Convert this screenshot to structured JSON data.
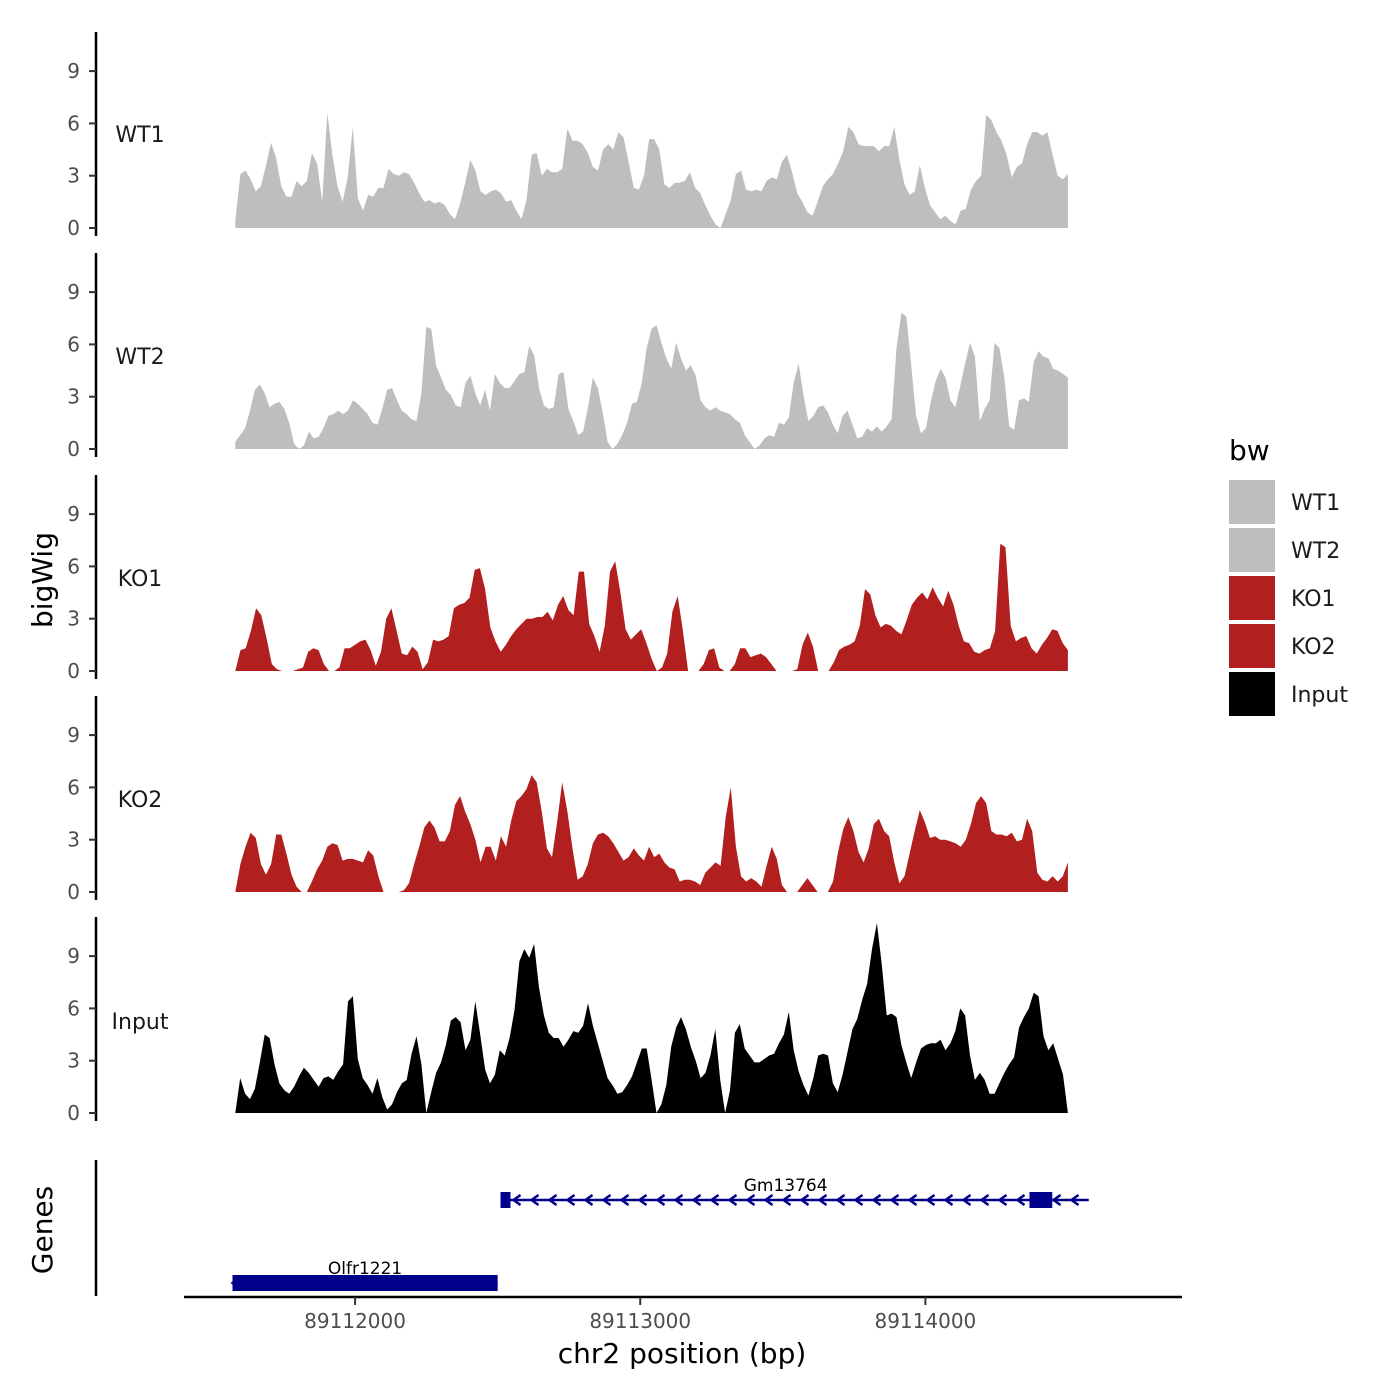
{
  "chart_data": {
    "type": "area",
    "chromosome": "chr2",
    "xlabel": "chr2 position (bp)",
    "ylabel": "bigWig",
    "genes_label": "Genes",
    "xlim": [
      89111400,
      89114900
    ],
    "ylim": [
      0,
      11.3
    ],
    "x_ticks": [
      89112000,
      89113000,
      89114000
    ],
    "x_tick_labels": [
      "89112000",
      "89113000",
      "89114000"
    ],
    "y_ticks": [
      0,
      3,
      6,
      9
    ],
    "y_tick_labels": [
      "0",
      "3",
      "6",
      "9"
    ],
    "legend_title": "bw",
    "legend_position": "right",
    "colors": {
      "WT1": "#bebebe",
      "WT2": "#bebebe",
      "KO1": "#b21f1f",
      "KO2": "#b21f1f",
      "Input": "#000000",
      "gene": "#00008b",
      "axis": "#000000"
    },
    "x_start": 89111580,
    "x_end": 89114500,
    "series": [
      {
        "name": "WT1",
        "label": "WT1",
        "values": [
          0.4,
          3.1,
          3.3,
          2.8,
          2.1,
          2.4,
          3.6,
          4.9,
          4.0,
          2.4,
          1.8,
          1.8,
          2.7,
          2.4,
          2.7,
          4.3,
          3.7,
          1.5,
          6.6,
          4.2,
          2.4,
          1.5,
          2.9,
          5.8,
          1.7,
          1.0,
          1.9,
          1.8,
          2.3,
          2.3,
          3.4,
          3.1,
          3.0,
          3.2,
          3.1,
          2.6,
          2.0,
          1.5,
          1.6,
          1.4,
          1.5,
          1.3,
          0.8,
          0.5,
          1.4,
          2.6,
          3.9,
          3.3,
          2.1,
          1.9,
          2.1,
          2.2,
          2.0,
          1.5,
          1.6,
          1.0,
          0.5,
          1.6,
          4.2,
          4.3,
          3.0,
          3.4,
          3.2,
          3.2,
          3.4,
          5.7,
          5.0,
          5.0,
          4.8,
          4.3,
          3.5,
          3.3,
          4.5,
          4.8,
          4.5,
          5.5,
          5.2,
          3.8,
          2.3,
          2.2,
          3.0,
          5.1,
          5.1,
          4.5,
          2.5,
          2.3,
          2.6,
          2.6,
          2.7,
          3.2,
          2.3,
          2.0,
          1.3,
          0.7,
          0.2,
          0.0,
          0.8,
          1.6,
          3.1,
          3.3,
          2.2,
          2.1,
          2.2,
          2.1,
          2.7,
          2.9,
          2.8,
          3.8,
          4.2,
          3.2,
          2.0,
          1.5,
          0.9,
          0.7,
          1.5,
          2.4,
          2.8,
          3.1,
          3.7,
          4.4,
          5.8,
          5.5,
          4.8,
          4.7,
          4.7,
          4.7,
          4.4,
          4.7,
          4.7,
          5.8,
          3.9,
          2.5,
          1.9,
          2.1,
          3.6,
          2.3,
          1.3,
          0.9,
          0.5,
          0.7,
          0.4,
          0.2,
          1.0,
          1.1,
          2.2,
          2.7,
          3.0,
          6.5,
          6.2,
          5.5,
          5.0,
          4.2,
          2.9,
          3.5,
          3.7,
          4.8,
          5.5,
          5.5,
          5.3,
          5.5,
          4.2,
          3.0,
          2.8,
          3.1
        ]
      },
      {
        "name": "WT2",
        "label": "WT2",
        "values": [
          0.4,
          0.8,
          1.2,
          2.2,
          3.4,
          3.7,
          3.2,
          2.4,
          2.6,
          2.7,
          2.3,
          1.5,
          0.3,
          0.0,
          0.2,
          1.0,
          0.6,
          0.7,
          1.2,
          1.9,
          2.0,
          2.2,
          2.0,
          2.2,
          2.8,
          2.6,
          2.3,
          2.0,
          1.5,
          1.4,
          2.3,
          3.4,
          3.5,
          2.8,
          2.2,
          2.0,
          1.7,
          1.6,
          3.2,
          7.0,
          6.9,
          4.8,
          4.1,
          3.4,
          3.1,
          2.5,
          2.4,
          3.8,
          4.2,
          3.2,
          2.5,
          3.4,
          2.2,
          4.3,
          3.8,
          3.5,
          3.5,
          3.9,
          4.3,
          4.4,
          5.9,
          5.4,
          3.5,
          2.5,
          2.3,
          2.4,
          4.3,
          4.4,
          2.3,
          1.6,
          0.8,
          1.0,
          2.4,
          4.1,
          3.5,
          2.1,
          0.4,
          0.0,
          0.3,
          0.8,
          1.5,
          2.6,
          2.7,
          3.8,
          5.8,
          6.9,
          7.1,
          6.1,
          5.2,
          4.6,
          6.1,
          5.2,
          4.5,
          4.8,
          4.2,
          2.8,
          2.4,
          2.2,
          2.4,
          2.2,
          2.1,
          2.0,
          1.7,
          1.5,
          0.8,
          0.4,
          0.0,
          0.2,
          0.6,
          0.8,
          0.7,
          1.5,
          1.4,
          1.8,
          3.8,
          4.9,
          3.1,
          1.6,
          1.9,
          2.4,
          2.5,
          2.1,
          1.4,
          0.9,
          1.9,
          2.2,
          1.4,
          0.6,
          0.7,
          1.2,
          1.0,
          1.3,
          1.0,
          1.3,
          1.7,
          5.8,
          7.8,
          7.6,
          4.8,
          1.9,
          0.9,
          1.2,
          2.7,
          3.9,
          4.6,
          4.1,
          2.8,
          2.4,
          3.6,
          4.9,
          6.1,
          5.3,
          1.6,
          2.3,
          2.8,
          6.1,
          5.8,
          4.1,
          1.3,
          1.1,
          2.8,
          2.9,
          2.7,
          5.0,
          5.6,
          5.3,
          5.2,
          4.6,
          4.5,
          4.3,
          4.1
        ]
      },
      {
        "name": "KO1",
        "label": "KO1",
        "values": [
          0.0,
          1.2,
          1.3,
          2.3,
          3.6,
          3.2,
          1.9,
          0.4,
          0.1,
          0.0,
          0.0,
          0.0,
          0.1,
          0.2,
          1.1,
          1.3,
          1.2,
          0.4,
          0.0,
          0.0,
          0.2,
          1.3,
          1.3,
          1.5,
          1.7,
          1.8,
          1.2,
          0.3,
          1.1,
          3.0,
          3.6,
          2.3,
          1.0,
          0.9,
          1.4,
          1.1,
          0.1,
          0.5,
          1.8,
          1.7,
          1.8,
          2.0,
          3.6,
          3.8,
          3.9,
          4.2,
          5.8,
          5.9,
          4.7,
          2.5,
          1.7,
          1.1,
          1.5,
          2.0,
          2.4,
          2.7,
          3.0,
          3.0,
          3.1,
          3.1,
          3.4,
          2.9,
          3.8,
          4.3,
          3.5,
          3.2,
          5.7,
          5.7,
          2.7,
          2.0,
          1.1,
          2.6,
          5.7,
          6.3,
          4.5,
          2.4,
          1.8,
          2.1,
          2.4,
          1.6,
          0.7,
          0.0,
          0.2,
          1.0,
          3.4,
          4.3,
          2.3,
          0.0,
          0.0,
          0.0,
          0.4,
          1.2,
          1.3,
          0.2,
          0.0,
          0.0,
          0.4,
          1.3,
          1.3,
          0.8,
          0.9,
          1.0,
          0.8,
          0.4,
          0.0,
          0.0,
          0.0,
          0.0,
          0.1,
          1.5,
          2.2,
          1.4,
          0.0,
          0.0,
          0.0,
          0.5,
          1.2,
          1.4,
          1.5,
          1.7,
          2.6,
          4.7,
          4.4,
          3.2,
          2.5,
          2.7,
          2.6,
          2.3,
          2.1,
          2.9,
          3.8,
          4.2,
          4.5,
          4.1,
          4.8,
          4.2,
          3.7,
          4.6,
          3.8,
          2.6,
          1.7,
          1.6,
          1.1,
          1.0,
          1.2,
          1.3,
          2.3,
          7.3,
          7.1,
          2.6,
          1.7,
          1.9,
          2.0,
          1.3,
          1.0,
          1.5,
          1.9,
          2.4,
          2.3,
          1.6,
          1.2
        ]
      },
      {
        "name": "KO2",
        "label": "KO2",
        "values": [
          0.0,
          1.6,
          2.6,
          3.4,
          3.1,
          1.6,
          1.0,
          1.6,
          3.3,
          3.3,
          2.2,
          1.0,
          0.3,
          0.0,
          0.0,
          0.6,
          1.3,
          1.8,
          2.6,
          2.8,
          2.7,
          1.8,
          1.9,
          1.9,
          1.8,
          1.7,
          2.4,
          2.1,
          0.9,
          0.0,
          0.0,
          0.0,
          0.0,
          0.1,
          0.5,
          1.6,
          2.6,
          3.7,
          4.1,
          3.7,
          2.9,
          2.9,
          3.5,
          5.0,
          5.5,
          4.6,
          3.9,
          3.0,
          1.7,
          2.6,
          2.6,
          1.8,
          3.2,
          2.6,
          4.1,
          5.2,
          5.5,
          5.9,
          6.7,
          6.3,
          4.6,
          2.5,
          2.0,
          4.0,
          6.3,
          4.6,
          2.5,
          0.7,
          0.9,
          1.6,
          2.8,
          3.3,
          3.4,
          3.2,
          2.8,
          2.3,
          1.8,
          2.0,
          2.5,
          2.1,
          1.8,
          2.6,
          2.0,
          2.2,
          1.7,
          1.4,
          1.3,
          0.6,
          0.7,
          0.7,
          0.6,
          0.4,
          1.1,
          1.4,
          1.7,
          1.5,
          4.3,
          6.0,
          2.6,
          0.9,
          0.6,
          0.8,
          0.6,
          0.3,
          1.5,
          2.6,
          1.9,
          0.4,
          0.0,
          0.0,
          0.0,
          0.4,
          0.8,
          0.4,
          0.0,
          0.0,
          0.0,
          0.6,
          2.3,
          3.6,
          4.3,
          3.5,
          2.3,
          1.7,
          2.5,
          3.9,
          4.2,
          3.5,
          3.2,
          1.7,
          0.5,
          0.9,
          2.2,
          3.5,
          4.7,
          4.0,
          3.1,
          3.2,
          3.0,
          3.0,
          2.9,
          2.8,
          2.6,
          3.0,
          3.9,
          5.1,
          5.5,
          5.1,
          3.5,
          3.3,
          3.3,
          3.2,
          3.4,
          2.9,
          3.0,
          4.2,
          3.5,
          1.1,
          0.7,
          0.6,
          0.9,
          0.6,
          0.9,
          1.7
        ]
      },
      {
        "name": "Input",
        "label": "Input",
        "values": [
          0.0,
          2.0,
          1.1,
          0.8,
          1.4,
          2.9,
          4.5,
          4.3,
          2.8,
          1.7,
          1.3,
          1.1,
          1.5,
          2.1,
          2.6,
          2.3,
          1.9,
          1.5,
          2.0,
          2.1,
          1.9,
          2.4,
          2.8,
          6.4,
          6.7,
          3.1,
          2.0,
          1.6,
          1.1,
          2.0,
          0.9,
          0.2,
          0.5,
          1.2,
          1.7,
          1.9,
          3.4,
          4.4,
          2.8,
          0.0,
          1.2,
          2.3,
          2.9,
          3.9,
          5.3,
          5.5,
          5.2,
          3.6,
          4.2,
          6.4,
          4.5,
          2.5,
          1.7,
          2.2,
          3.6,
          3.3,
          4.3,
          5.9,
          8.7,
          9.4,
          8.9,
          9.7,
          7.2,
          5.6,
          4.6,
          4.3,
          4.3,
          3.8,
          4.2,
          4.7,
          4.6,
          5.0,
          6.3,
          5.0,
          4.0,
          3.0,
          2.0,
          1.6,
          1.1,
          1.2,
          1.6,
          2.1,
          2.9,
          3.7,
          3.7,
          1.9,
          0.0,
          0.5,
          1.6,
          3.8,
          4.9,
          5.5,
          4.8,
          3.8,
          3.0,
          2.0,
          2.3,
          3.3,
          4.8,
          1.9,
          0.0,
          1.3,
          4.6,
          5.1,
          3.7,
          3.3,
          2.9,
          2.9,
          3.1,
          3.3,
          3.4,
          4.0,
          4.5,
          5.8,
          3.6,
          2.4,
          1.6,
          1.0,
          2.0,
          3.3,
          3.4,
          3.3,
          1.7,
          1.2,
          2.2,
          3.5,
          4.8,
          5.4,
          6.5,
          7.4,
          9.4,
          10.9,
          8.5,
          5.6,
          5.7,
          5.5,
          3.9,
          2.9,
          2.0,
          2.9,
          3.7,
          3.9,
          4.0,
          4.0,
          4.2,
          3.6,
          4.0,
          4.7,
          6.0,
          5.6,
          3.3,
          1.9,
          2.3,
          1.9,
          1.1,
          1.1,
          1.7,
          2.3,
          2.8,
          3.2,
          4.9,
          5.5,
          6.0,
          6.9,
          6.7,
          4.4,
          3.6,
          4.0,
          3.1,
          2.2,
          0.0
        ]
      }
    ],
    "genes": [
      {
        "name": "Olfr1221",
        "start": 89111570,
        "end": 89112500,
        "strand": "+",
        "exons": [
          [
            89111570,
            89112500
          ]
        ],
        "track": 2
      },
      {
        "name": "Gm13764",
        "start": 89112510,
        "end": 89114510,
        "strand": "-",
        "exons": [
          [
            89112510,
            89112545
          ],
          [
            89114365,
            89114445
          ]
        ],
        "track": 1
      }
    ]
  }
}
